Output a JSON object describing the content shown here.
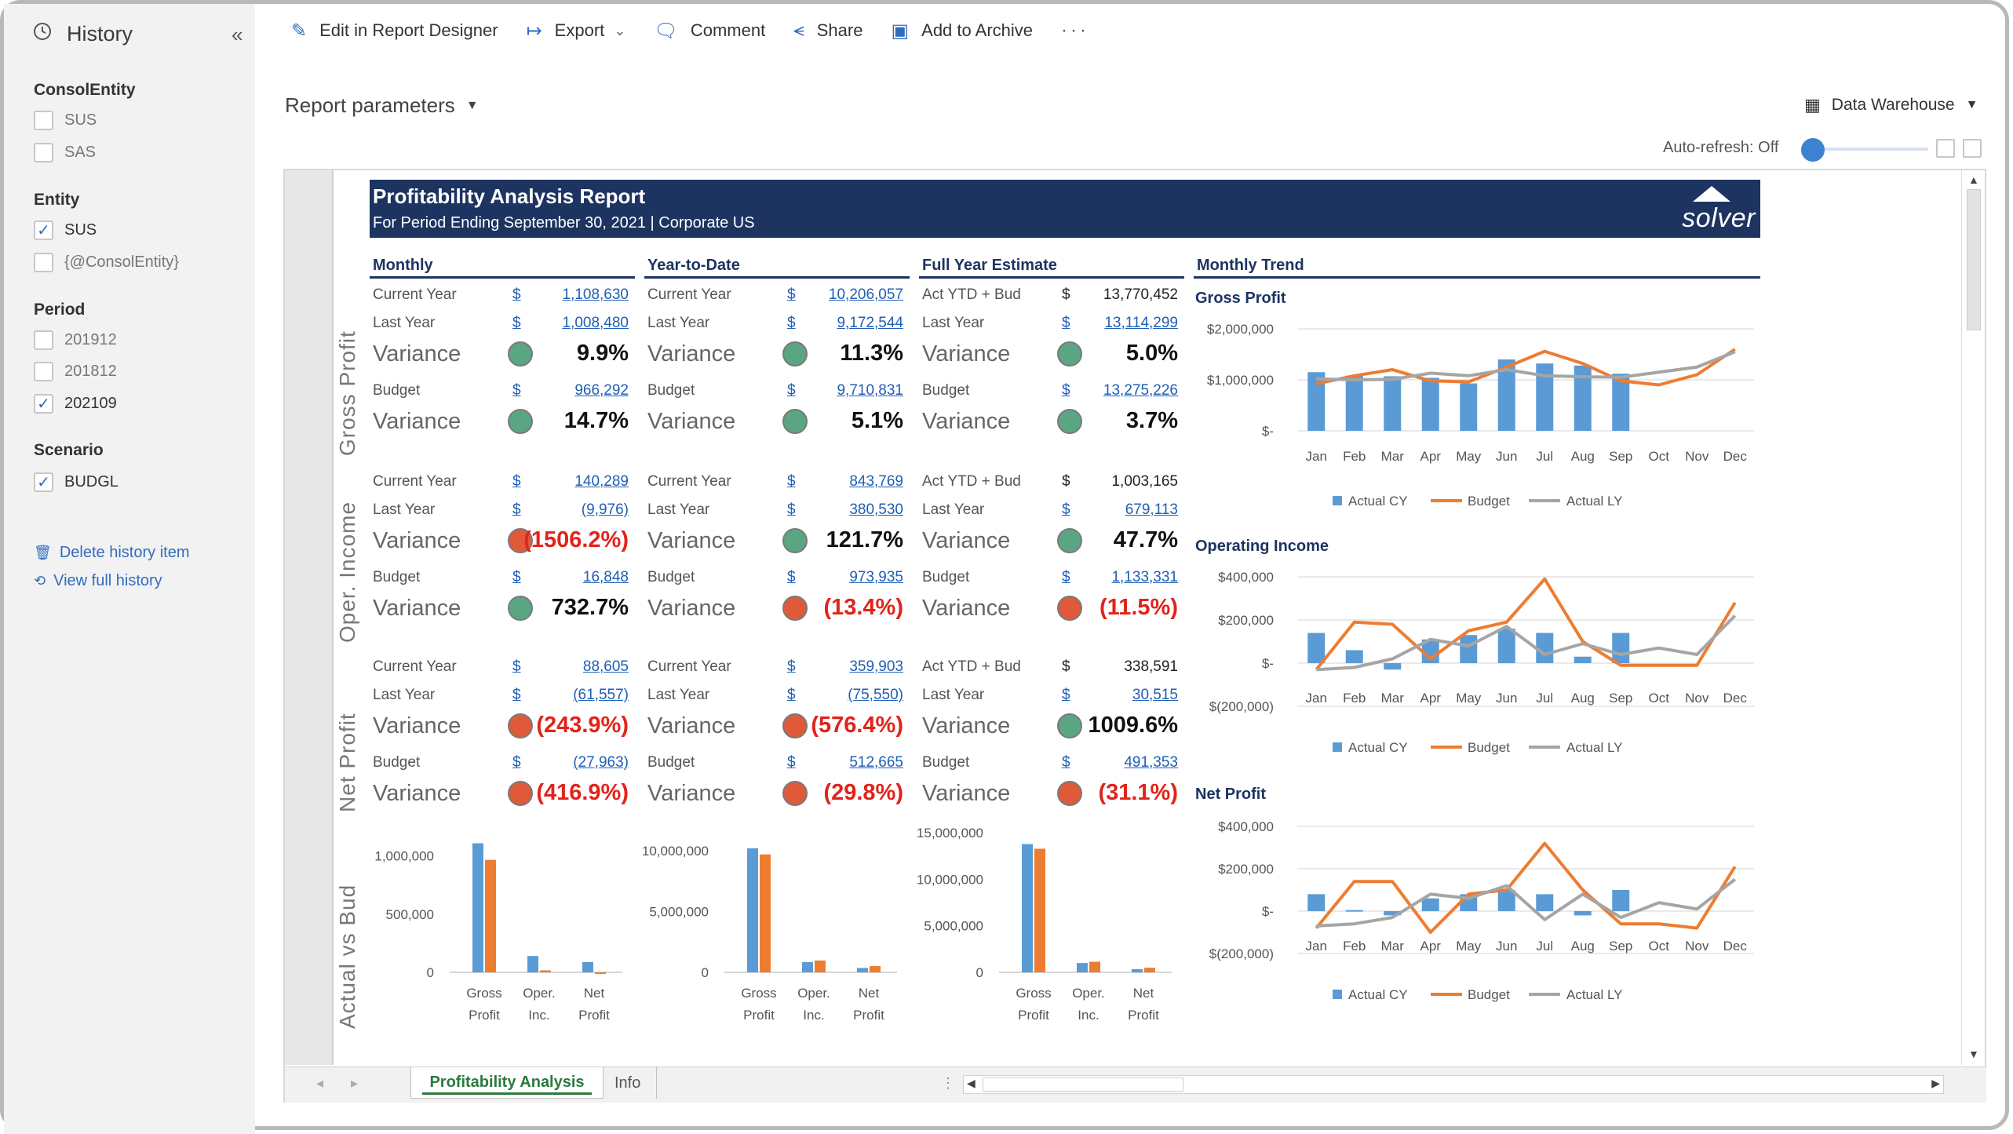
{
  "sidebar": {
    "title": "History",
    "sections": [
      {
        "title": "ConsolEntity",
        "items": [
          {
            "label": "SUS",
            "checked": false
          },
          {
            "label": "SAS",
            "checked": false
          }
        ]
      },
      {
        "title": "Entity",
        "items": [
          {
            "label": "SUS",
            "checked": true
          },
          {
            "label": "{@ConsolEntity}",
            "checked": false
          }
        ]
      },
      {
        "title": "Period",
        "items": [
          {
            "label": "201912",
            "checked": false
          },
          {
            "label": "201812",
            "checked": false
          },
          {
            "label": "202109",
            "checked": true
          }
        ]
      },
      {
        "title": "Scenario",
        "items": [
          {
            "label": "BUDGL",
            "checked": true
          }
        ]
      }
    ],
    "links": {
      "delete": "Delete history item",
      "view": "View full history"
    }
  },
  "toolbar": {
    "edit": "Edit in Report Designer",
    "export": "Export",
    "comment": "Comment",
    "share": "Share",
    "archive": "Add to Archive",
    "more": "···"
  },
  "params": {
    "label": "Report parameters"
  },
  "datasource": {
    "label": "Data Warehouse"
  },
  "autorefresh": {
    "label": "Auto-refresh: Off",
    "value": 0
  },
  "report": {
    "title": "Profitability Analysis Report",
    "subtitle": "For Period Ending September 30, 2021 | Corporate US",
    "logo": "solver",
    "columns": [
      "Monthly",
      "Year-to-Date",
      "Full Year Estimate",
      "Monthly Trend"
    ],
    "row_labels": [
      "Gross Profit",
      "Oper. Income",
      "Net Profit",
      "Actual vs Bud"
    ],
    "blocks": [
      {
        "r1k": "Current Year",
        "r1": "1,108,630",
        "r2k": "Last Year",
        "r2": "1,008,480",
        "v1": "9.9%",
        "v1s": "green",
        "r3k": "Budget",
        "r3": "966,292",
        "v2": "14.7%",
        "v2s": "green",
        "plain1": false
      },
      {
        "r1k": "Current Year",
        "r1": "10,206,057",
        "r2k": "Last Year",
        "r2": "9,172,544",
        "v1": "11.3%",
        "v1s": "green",
        "r3k": "Budget",
        "r3": "9,710,831",
        "v2": "5.1%",
        "v2s": "green",
        "plain1": false
      },
      {
        "r1k": "Act YTD + Bud",
        "r1": "13,770,452",
        "r2k": "Last Year",
        "r2": "13,114,299",
        "v1": "5.0%",
        "v1s": "green",
        "r3k": "Budget",
        "r3": "13,275,226",
        "v2": "3.7%",
        "v2s": "green",
        "plain1": true
      },
      {
        "r1k": "Current Year",
        "r1": "140,289",
        "r2k": "Last Year",
        "r2": "(9,976)",
        "v1": "(1506.2%)",
        "v1s": "red",
        "r3k": "Budget",
        "r3": "16,848",
        "v2": "732.7%",
        "v2s": "green",
        "plain1": false
      },
      {
        "r1k": "Current Year",
        "r1": "843,769",
        "r2k": "Last Year",
        "r2": "380,530",
        "v1": "121.7%",
        "v1s": "green",
        "r3k": "Budget",
        "r3": "973,935",
        "v2": "(13.4%)",
        "v2s": "red",
        "plain1": false
      },
      {
        "r1k": "Act YTD + Bud",
        "r1": "1,003,165",
        "r2k": "Last Year",
        "r2": "679,113",
        "v1": "47.7%",
        "v1s": "green",
        "r3k": "Budget",
        "r3": "1,133,331",
        "v2": "(11.5%)",
        "v2s": "red",
        "plain1": true
      },
      {
        "r1k": "Current Year",
        "r1": "88,605",
        "r2k": "Last Year",
        "r2": "(61,557)",
        "v1": "(243.9%)",
        "v1s": "red",
        "r3k": "Budget",
        "r3": "(27,963)",
        "v2": "(416.9%)",
        "v2s": "red",
        "plain1": false
      },
      {
        "r1k": "Current Year",
        "r1": "359,903",
        "r2k": "Last Year",
        "r2": "(75,550)",
        "v1": "(576.4%)",
        "v1s": "red",
        "r3k": "Budget",
        "r3": "512,665",
        "v2": "(29.8%)",
        "v2s": "red",
        "plain1": false
      },
      {
        "r1k": "Act YTD + Bud",
        "r1": "338,591",
        "r2k": "Last Year",
        "r2": "30,515",
        "v1": "1009.6%",
        "v1s": "green",
        "r3k": "Budget",
        "r3": "491,353",
        "v2": "(31.1%)",
        "v2s": "red",
        "plain1": true
      }
    ],
    "variance_label": "Variance",
    "currency": "$",
    "colors": {
      "actual": "#5b9bd5",
      "budget": "#ed7d31",
      "last_year": "#a5a5a5",
      "good": "#5aa683",
      "bad": "#e05a3a",
      "navy": "#1d3461"
    }
  },
  "sheets": {
    "active": "Profitability Analysis",
    "other": "Info"
  },
  "chart_data": [
    {
      "type": "bar",
      "name": "monthly-actual-vs-bud",
      "categories": [
        "Gross Profit",
        "Oper. Inc.",
        "Net Profit"
      ],
      "series": [
        {
          "values": [
            1108630,
            140289,
            88605
          ]
        },
        {
          "values": [
            966292,
            16848,
            -27963
          ]
        }
      ],
      "yticks": [
        "1,000,000",
        "500,000",
        "0"
      ],
      "ylim": [
        0,
        1200000
      ]
    },
    {
      "type": "bar",
      "name": "ytd-actual-vs-bud",
      "categories": [
        "Gross Profit",
        "Oper. Inc.",
        "Net Profit"
      ],
      "series": [
        {
          "values": [
            10206057,
            843769,
            359903
          ]
        },
        {
          "values": [
            9710831,
            973935,
            512665
          ]
        }
      ],
      "yticks": [
        "10,000,000",
        "5,000,000",
        "0"
      ],
      "ylim": [
        0,
        11500000
      ]
    },
    {
      "type": "bar",
      "name": "fy-actual-vs-bud",
      "categories": [
        "Gross Profit",
        "Oper. Inc.",
        "Net Profit"
      ],
      "series": [
        {
          "values": [
            13770452,
            1003165,
            338591
          ]
        },
        {
          "values": [
            13275226,
            1133331,
            491353
          ]
        }
      ],
      "yticks": [
        "15,000,000",
        "10,000,000",
        "5,000,000",
        "0"
      ],
      "ylim": [
        0,
        15000000
      ]
    },
    {
      "type": "bar+line",
      "title": "Gross Profit",
      "x": [
        "Jan",
        "Feb",
        "Mar",
        "Apr",
        "May",
        "Jun",
        "Jul",
        "Aug",
        "Sep",
        "Oct",
        "Nov",
        "Dec"
      ],
      "yticks": [
        "$2,000,000",
        "$1,000,000",
        "$-"
      ],
      "ylim": [
        0,
        2000000
      ],
      "series": [
        {
          "name": "Actual CY",
          "kind": "bar",
          "values": [
            1150000,
            1080000,
            1070000,
            1040000,
            930000,
            1400000,
            1320000,
            1280000,
            1120000,
            null,
            null,
            null
          ]
        },
        {
          "name": "Budget",
          "kind": "line",
          "values": [
            920000,
            1080000,
            1200000,
            980000,
            960000,
            1250000,
            1560000,
            1320000,
            980000,
            900000,
            1100000,
            1600000
          ]
        },
        {
          "name": "Actual LY",
          "kind": "line",
          "values": [
            1020000,
            1000000,
            1010000,
            1130000,
            1080000,
            1200000,
            1080000,
            1060000,
            1050000,
            1150000,
            1250000,
            1550000
          ]
        }
      ]
    },
    {
      "type": "bar+line",
      "title": "Operating Income",
      "x": [
        "Jan",
        "Feb",
        "Mar",
        "Apr",
        "May",
        "Jun",
        "Jul",
        "Aug",
        "Sep",
        "Oct",
        "Nov",
        "Dec"
      ],
      "yticks": [
        "$400,000",
        "$200,000",
        "$-",
        "$(200,000)"
      ],
      "ylim": [
        -200000,
        400000
      ],
      "series": [
        {
          "name": "Actual CY",
          "kind": "bar",
          "values": [
            140000,
            60000,
            -30000,
            110000,
            130000,
            160000,
            140000,
            30000,
            140000,
            null,
            null,
            null
          ]
        },
        {
          "name": "Budget",
          "kind": "line",
          "values": [
            -30000,
            190000,
            180000,
            20000,
            150000,
            190000,
            390000,
            100000,
            -10000,
            -10000,
            -10000,
            280000
          ]
        },
        {
          "name": "Actual LY",
          "kind": "line",
          "values": [
            -30000,
            -20000,
            20000,
            110000,
            80000,
            170000,
            40000,
            90000,
            40000,
            70000,
            40000,
            220000
          ]
        }
      ]
    },
    {
      "type": "bar+line",
      "title": "Net Profit",
      "x": [
        "Jan",
        "Feb",
        "Mar",
        "Apr",
        "May",
        "Jun",
        "Jul",
        "Aug",
        "Sep",
        "Oct",
        "Nov",
        "Dec"
      ],
      "yticks": [
        "$400,000",
        "$200,000",
        "$-",
        "$(200,000)"
      ],
      "ylim": [
        -200000,
        400000
      ],
      "series": [
        {
          "name": "Actual CY",
          "kind": "bar",
          "values": [
            80000,
            5000,
            -20000,
            60000,
            80000,
            100000,
            80000,
            -20000,
            100000,
            null,
            null,
            null
          ]
        },
        {
          "name": "Budget",
          "kind": "line",
          "values": [
            -80000,
            140000,
            140000,
            -100000,
            80000,
            100000,
            320000,
            100000,
            -60000,
            -60000,
            -80000,
            210000
          ]
        },
        {
          "name": "Actual LY",
          "kind": "line",
          "values": [
            -70000,
            -60000,
            -30000,
            80000,
            60000,
            120000,
            -40000,
            80000,
            -30000,
            40000,
            10000,
            150000
          ]
        }
      ]
    }
  ],
  "legend": {
    "actual": "Actual CY",
    "budget": "Budget",
    "ly": "Actual LY"
  }
}
